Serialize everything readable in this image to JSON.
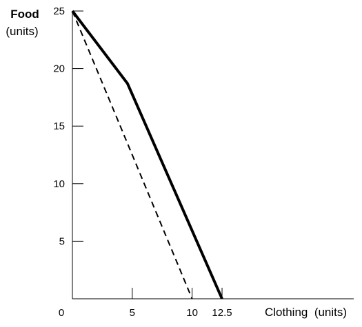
{
  "chart_data": {
    "type": "line",
    "ylabel": "Food",
    "ylabel_unit": "(units)",
    "xlabel": "Clothing  (units)",
    "origin_label": "0",
    "x_ticks": [
      {
        "value": 5,
        "label": "5"
      },
      {
        "value": 10,
        "label": "10"
      },
      {
        "value": 12.5,
        "label": "12.5"
      }
    ],
    "y_ticks": [
      {
        "value": 5,
        "label": "5"
      },
      {
        "value": 10,
        "label": "10"
      },
      {
        "value": 15,
        "label": "15"
      },
      {
        "value": 20,
        "label": "20"
      },
      {
        "value": 25,
        "label": "25"
      }
    ],
    "xlim": [
      0,
      23.5
    ],
    "ylim": [
      0,
      25
    ],
    "grid": false,
    "series": [
      {
        "style": "solid",
        "color": "#000000",
        "points": [
          [
            0,
            25
          ],
          [
            4.6,
            18.7
          ],
          [
            12.5,
            0
          ]
        ]
      },
      {
        "style": "dashed",
        "color": "#000000",
        "points": [
          [
            0,
            25
          ],
          [
            10,
            0
          ]
        ]
      }
    ]
  }
}
